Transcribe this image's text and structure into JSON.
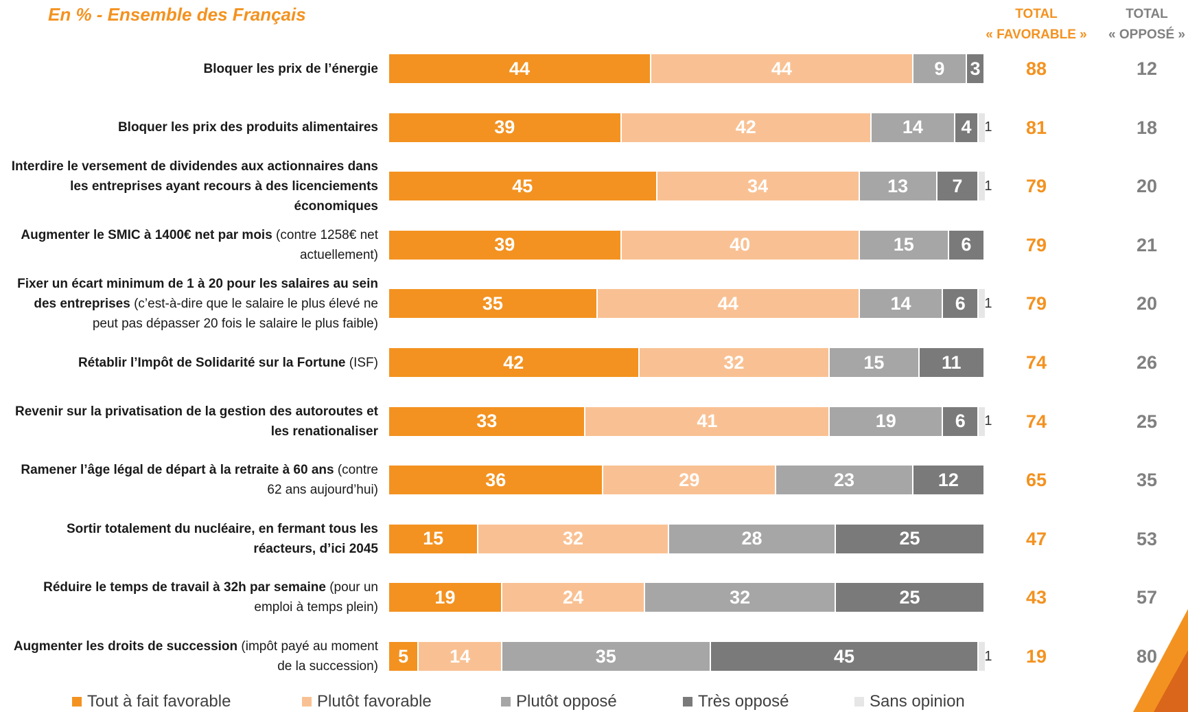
{
  "subtitle": "En % - Ensemble des Français",
  "columns": {
    "favorable": [
      "TOTAL",
      "« FAVORABLE »"
    ],
    "oppose": [
      "TOTAL",
      "« OPPOSÉ »"
    ]
  },
  "colors": {
    "tout_a_fait_favorable": "#F39220",
    "plutot_favorable": "#F9C193",
    "plutot_oppose": "#A6A6A6",
    "tres_oppose": "#7A7A7A",
    "sans_opinion": "#E6E6E6",
    "favorable_total": "#F39220",
    "oppose_total": "#808080"
  },
  "chart_data": {
    "type": "bar",
    "orientation": "horizontal",
    "stacked": true,
    "categories": [
      "Bloquer les prix de l’énergie",
      "Bloquer les prix des produits alimentaires",
      "Interdire le versement de dividendes aux actionnaires dans les entreprises ayant recours à des licenciements économiques",
      "Augmenter le SMIC à 1400€ net par mois (contre 1258€ net actuellement)",
      "Fixer un écart minimum de 1 à 20 pour les salaires au sein des entreprises (c’est-à-dire que le salaire le plus élevé ne peut pas dépasser 20 fois le salaire le plus faible)",
      "Rétablir l’Impôt de Solidarité sur la Fortune (ISF)",
      "Revenir sur la privatisation de la gestion des autoroutes et les renationaliser",
      "Ramener l’âge légal de départ à la retraite à 60 ans (contre 62 ans aujourd’hui)",
      "Sortir totalement du nucléaire, en fermant tous les réacteurs, d’ici 2045",
      "Réduire le temps de travail à 32h par semaine (pour un emploi à temps plein)",
      "Augmenter les droits de succession (impôt payé au moment de la succession)"
    ],
    "series": [
      {
        "name": "Tout à fait favorable",
        "values": [
          44,
          39,
          45,
          39,
          35,
          42,
          33,
          36,
          15,
          19,
          5
        ]
      },
      {
        "name": "Plutôt favorable",
        "values": [
          44,
          42,
          34,
          40,
          44,
          32,
          41,
          29,
          32,
          24,
          14
        ]
      },
      {
        "name": "Plutôt opposé",
        "values": [
          9,
          14,
          13,
          15,
          14,
          15,
          19,
          23,
          28,
          32,
          35
        ]
      },
      {
        "name": "Très opposé",
        "values": [
          3,
          4,
          7,
          6,
          6,
          11,
          6,
          12,
          25,
          25,
          45
        ]
      },
      {
        "name": "Sans opinion",
        "values": [
          null,
          1,
          1,
          null,
          1,
          null,
          1,
          null,
          null,
          null,
          1
        ]
      }
    ],
    "total_favorable": [
      88,
      81,
      79,
      79,
      79,
      74,
      74,
      65,
      47,
      43,
      19
    ],
    "total_oppose": [
      12,
      18,
      20,
      21,
      20,
      26,
      25,
      35,
      53,
      57,
      80
    ],
    "xlim": [
      0,
      100
    ],
    "legend": "bottom"
  },
  "rows": [
    {
      "label_bold": "Bloquer les prix de l’énergie",
      "label_normal": ""
    },
    {
      "label_bold": "Bloquer les prix des produits alimentaires",
      "label_normal": ""
    },
    {
      "label_bold": "Interdire le versement de dividendes aux actionnaires dans les entreprises ayant recours à des licenciements économiques",
      "label_normal": ""
    },
    {
      "label_bold": "Augmenter le SMIC à 1400€ net par mois",
      "label_normal": " (contre 1258€ net actuellement)"
    },
    {
      "label_bold": "Fixer un écart minimum de 1 à 20 pour les salaires au sein des entreprises",
      "label_normal": " (c’est-à-dire que le salaire le plus élevé ne peut pas dépasser 20 fois le salaire le plus faible)"
    },
    {
      "label_bold": "Rétablir l’Impôt de Solidarité sur la Fortune",
      "label_normal": " (ISF)"
    },
    {
      "label_bold": "Revenir sur la privatisation de la gestion des autoroutes et les renationaliser",
      "label_normal": ""
    },
    {
      "label_bold": "Ramener l’âge légal de départ à la retraite à 60 ans",
      "label_normal": " (contre 62 ans aujourd’hui)"
    },
    {
      "label_bold": "Sortir totalement du nucléaire, en fermant tous les réacteurs, d’ici 2045",
      "label_normal": ""
    },
    {
      "label_bold": "Réduire le temps de travail à 32h par semaine",
      "label_normal": " (pour un emploi à temps plein)"
    },
    {
      "label_bold": "Augmenter les droits de succession",
      "label_normal": " (impôt payé au moment de la succession)"
    }
  ]
}
